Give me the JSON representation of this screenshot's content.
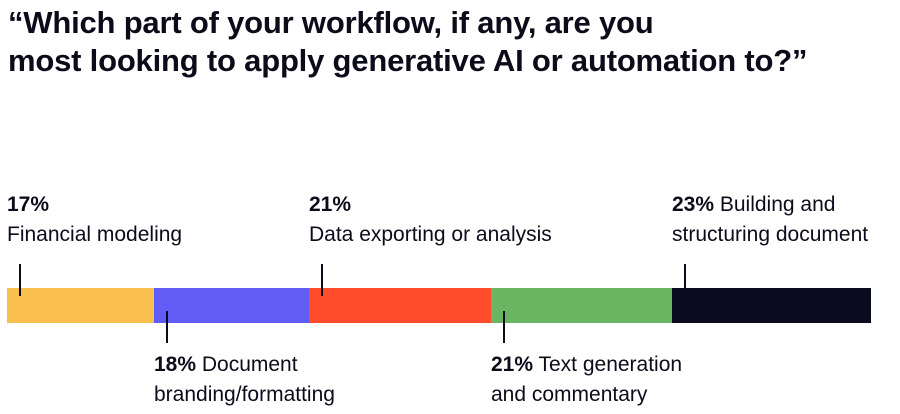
{
  "title": {
    "line1": "“Which part of your workflow, if any, are you",
    "line2": "most looking to apply generative AI or automation to?”"
  },
  "chart_data": {
    "type": "bar",
    "orientation": "stacked-horizontal",
    "unit": "%",
    "segments": [
      {
        "value": 17,
        "pct_label": "17%",
        "label_line1": "",
        "label_line2": "Financial modeling",
        "color": "#f9c04f",
        "label_side": "above"
      },
      {
        "value": 18,
        "pct_label": "18%",
        "label_line1": "Document",
        "label_line2": "branding/formatting",
        "color": "#635bf6",
        "label_side": "below"
      },
      {
        "value": 21,
        "pct_label": "21%",
        "label_line1": "",
        "label_line2": "Data exporting or analysis",
        "color": "#ff4d2b",
        "label_side": "above"
      },
      {
        "value": 21,
        "pct_label": "21%",
        "label_line1": "Text generation",
        "label_line2": "and commentary",
        "color": "#69b562",
        "label_side": "below"
      },
      {
        "value": 23,
        "pct_label": "23%",
        "label_line1": "Building and",
        "label_line2": "structuring document",
        "color": "#0b0b1f",
        "label_side": "above"
      }
    ]
  }
}
